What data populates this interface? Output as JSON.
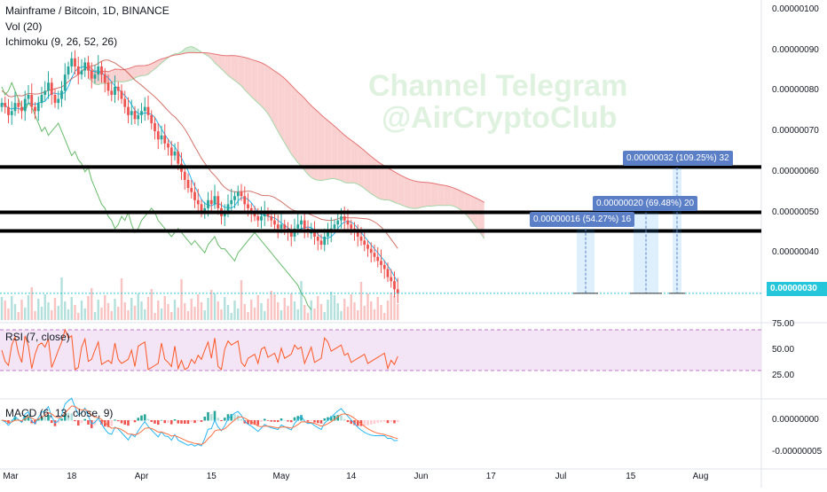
{
  "chart_data": {
    "type": "candlestick",
    "header": {
      "title": "Mainframe / Bitcoin, 1D, BINANCE",
      "indicator_vol": "Vol (20)",
      "indicator_ichimoku": "Ichimoku (9, 26, 52, 26)"
    },
    "watermark": [
      "Channel Telegram",
      "@AirCryptoClub"
    ],
    "price_axis": {
      "ticks": [
        "0.00000100",
        "0.00000090",
        "0.00000080",
        "0.00000070",
        "0.00000060",
        "0.00000050",
        "0.00000040",
        "0.00000030"
      ],
      "tick_values": [
        100,
        90,
        80,
        70,
        60,
        50,
        40,
        30
      ],
      "last_price_label": "0.00000030",
      "last_price": 30
    },
    "x_axis": {
      "labels": [
        "Mar",
        "18",
        "Apr",
        "15",
        "May",
        "14",
        "Jun",
        "17",
        "Jul",
        "15",
        "Aug"
      ],
      "label_index": [
        0,
        21,
        42,
        63,
        84,
        105,
        126,
        147,
        168,
        189,
        210
      ]
    },
    "candles_close": [
      77,
      76,
      74,
      75,
      77,
      76,
      75,
      78,
      79,
      76,
      75,
      77,
      79,
      80,
      82,
      79,
      77,
      78,
      80,
      84,
      86,
      88,
      86,
      84,
      85,
      87,
      85,
      83,
      84,
      86,
      84,
      82,
      80,
      79,
      81,
      80,
      78,
      76,
      74,
      75,
      73,
      74,
      75,
      76,
      74,
      72,
      70,
      68,
      69,
      67,
      66,
      64,
      65,
      62,
      60,
      58,
      56,
      55,
      53,
      52,
      50,
      51,
      53,
      52,
      54,
      51,
      49,
      50,
      52,
      53,
      54,
      55,
      54,
      52,
      51,
      50,
      49,
      48,
      49,
      50,
      49,
      48,
      47,
      46,
      47,
      46,
      45,
      44,
      46,
      47,
      48,
      46,
      45,
      45,
      44,
      43,
      42,
      44,
      45,
      46,
      47,
      48,
      49,
      48,
      47,
      46,
      45,
      44,
      43,
      42,
      41,
      40,
      39,
      38,
      37,
      36,
      34,
      33,
      31,
      30
    ],
    "support_resistance_lines": [
      {
        "value": 61.2
      },
      {
        "value": 50
      },
      {
        "value": 45.4
      }
    ],
    "measurements": [
      {
        "label": "0.00000016 (54.27%) 16"
      },
      {
        "label": "0.00000020 (69.48%) 20"
      },
      {
        "label": "0.00000032 (109.25%) 32"
      }
    ],
    "rsi": {
      "label": "RSI (7, close)",
      "ticks": [
        "75.00",
        "50.00",
        "25.00"
      ],
      "band": [
        30,
        70
      ]
    },
    "macd": {
      "label": "MACD (6, 13, close, 9)",
      "ticks": [
        "0.00000000",
        "-0.00000005"
      ]
    },
    "colors": {
      "up": "#26a69a",
      "down": "#ef5350",
      "cloud_bear": "#f7c6c6",
      "cloud_bull": "#c8e6c9",
      "rsi_band": "#f3e5f5",
      "rsi_line": "#ff5722",
      "macd_line": "#29b6f6",
      "signal_line": "#ff7043",
      "measure": "#5b7fc7",
      "last_price": "#26c6da"
    }
  }
}
